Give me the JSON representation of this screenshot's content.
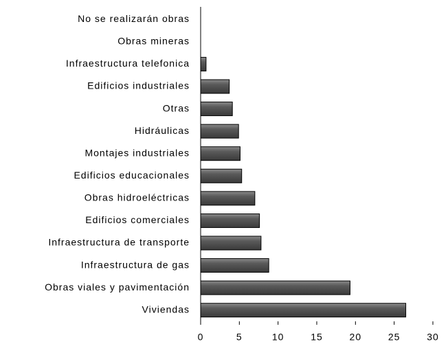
{
  "chart_data": {
    "type": "bar",
    "orientation": "horizontal",
    "categories": [
      "No se realizarán obras",
      "Obras mineras",
      "Infraestructura telefonica",
      "Edificios industriales",
      "Otras",
      "Hidráulicas",
      "Montajes industriales",
      "Edificios educacionales",
      "Obras hidroeléctricas",
      "Edificios comerciales",
      "Infraestructura de transporte",
      "Infraestructura de gas",
      "Obras viales y pavimentación",
      "Viviendas"
    ],
    "values": [
      0,
      0,
      0.7,
      3.7,
      4.1,
      4.9,
      5.1,
      5.3,
      7.0,
      7.6,
      7.8,
      8.8,
      19.3,
      26.5
    ],
    "color": "#595959",
    "xlim": [
      0,
      30
    ],
    "xticks": [
      0,
      5,
      10,
      15,
      20,
      25,
      30
    ],
    "grid": false
  }
}
